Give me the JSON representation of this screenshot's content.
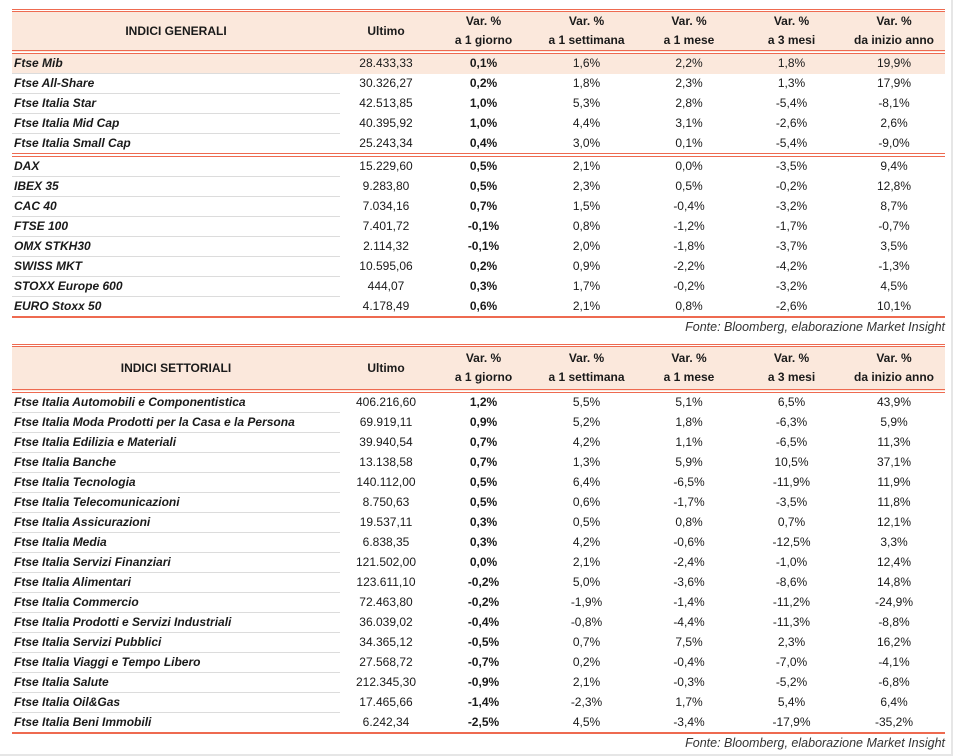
{
  "general": {
    "headers": [
      "INDICI GENERALI",
      "Ultimo",
      [
        "Var. %",
        "a 1 giorno"
      ],
      [
        "Var. %",
        "a 1 settimana"
      ],
      [
        "Var. %",
        "a 1 mese"
      ],
      [
        "Var. %",
        "a 3 mesi"
      ],
      [
        "Var. %",
        "da inizio anno"
      ]
    ],
    "rows": [
      [
        "Ftse Mib",
        "28.433,33",
        "0,1%",
        "1,6%",
        "2,2%",
        "1,8%",
        "19,9%"
      ],
      [
        "Ftse All-Share",
        "30.326,27",
        "0,2%",
        "1,8%",
        "2,3%",
        "1,3%",
        "17,9%"
      ],
      [
        "Ftse Italia Star",
        "42.513,85",
        "1,0%",
        "5,3%",
        "2,8%",
        "-5,4%",
        "-8,1%"
      ],
      [
        "Ftse Italia Mid Cap",
        "40.395,92",
        "1,0%",
        "4,4%",
        "3,1%",
        "-2,6%",
        "2,6%"
      ],
      [
        "Ftse Italia Small Cap",
        "25.243,34",
        "0,4%",
        "3,0%",
        "0,1%",
        "-5,4%",
        "-9,0%"
      ],
      [
        "DAX",
        "15.229,60",
        "0,5%",
        "2,1%",
        "0,0%",
        "-3,5%",
        "9,4%"
      ],
      [
        "IBEX 35",
        "9.283,80",
        "0,5%",
        "2,3%",
        "0,5%",
        "-0,2%",
        "12,8%"
      ],
      [
        "CAC 40",
        "7.034,16",
        "0,7%",
        "1,5%",
        "-0,4%",
        "-3,2%",
        "8,7%"
      ],
      [
        "FTSE 100",
        "7.401,72",
        "-0,1%",
        "0,8%",
        "-1,2%",
        "-1,7%",
        "-0,7%"
      ],
      [
        "OMX STKH30",
        "2.114,32",
        "-0,1%",
        "2,0%",
        "-1,8%",
        "-3,7%",
        "3,5%"
      ],
      [
        "SWISS MKT",
        "10.595,06",
        "0,2%",
        "0,9%",
        "-2,2%",
        "-4,2%",
        "-1,3%"
      ],
      [
        "STOXX Europe 600",
        "444,07",
        "0,3%",
        "1,7%",
        "-0,2%",
        "-3,2%",
        "4,5%"
      ],
      [
        "EURO Stoxx 50",
        "4.178,49",
        "0,6%",
        "2,1%",
        "0,8%",
        "-2,6%",
        "10,1%"
      ]
    ],
    "source": "Fonte: Bloomberg, elaborazione Market Insight"
  },
  "sector": {
    "headers": [
      "INDICI SETTORIALI",
      "Ultimo",
      [
        "Var. %",
        "a 1 giorno"
      ],
      [
        "Var. %",
        "a 1 settimana"
      ],
      [
        "Var. %",
        "a 1 mese"
      ],
      [
        "Var. %",
        "a 3 mesi"
      ],
      [
        "Var. %",
        "da inizio anno"
      ]
    ],
    "rows": [
      [
        "Ftse Italia Automobili e Componentistica",
        "406.216,60",
        "1,2%",
        "5,5%",
        "5,1%",
        "6,5%",
        "43,9%"
      ],
      [
        "Ftse Italia Moda Prodotti per la Casa e la Persona",
        "69.919,11",
        "0,9%",
        "5,2%",
        "1,8%",
        "-6,3%",
        "5,9%"
      ],
      [
        "Ftse Italia Edilizia e Materiali",
        "39.940,54",
        "0,7%",
        "4,2%",
        "1,1%",
        "-6,5%",
        "11,3%"
      ],
      [
        "Ftse Italia Banche",
        "13.138,58",
        "0,7%",
        "1,3%",
        "5,9%",
        "10,5%",
        "37,1%"
      ],
      [
        "Ftse Italia Tecnologia",
        "140.112,00",
        "0,5%",
        "6,4%",
        "-6,5%",
        "-11,9%",
        "11,9%"
      ],
      [
        "Ftse Italia Telecomunicazioni",
        "8.750,63",
        "0,5%",
        "0,6%",
        "-1,7%",
        "-3,5%",
        "11,8%"
      ],
      [
        "Ftse Italia Assicurazioni",
        "19.537,11",
        "0,3%",
        "0,5%",
        "0,8%",
        "0,7%",
        "12,1%"
      ],
      [
        "Ftse Italia Media",
        "6.838,35",
        "0,3%",
        "4,2%",
        "-0,6%",
        "-12,5%",
        "3,3%"
      ],
      [
        "Ftse Italia Servizi Finanziari",
        "121.502,00",
        "0,0%",
        "2,1%",
        "-2,4%",
        "-1,0%",
        "12,4%"
      ],
      [
        "Ftse Italia Alimentari",
        "123.611,10",
        "-0,2%",
        "5,0%",
        "-3,6%",
        "-8,6%",
        "14,8%"
      ],
      [
        "Ftse Italia Commercio",
        "72.463,80",
        "-0,2%",
        "-1,9%",
        "-1,4%",
        "-11,2%",
        "-24,9%"
      ],
      [
        "Ftse Italia Prodotti e Servizi Industriali",
        "36.039,02",
        "-0,4%",
        "-0,8%",
        "-4,4%",
        "-11,3%",
        "-8,8%"
      ],
      [
        "Ftse Italia Servizi Pubblici",
        "34.365,12",
        "-0,5%",
        "0,7%",
        "7,5%",
        "2,3%",
        "16,2%"
      ],
      [
        "Ftse Italia Viaggi e Tempo Libero",
        "27.568,72",
        "-0,7%",
        "0,2%",
        "-0,4%",
        "-7,0%",
        "-4,1%"
      ],
      [
        "Ftse Italia Salute",
        "212.345,30",
        "-0,9%",
        "2,1%",
        "-0,3%",
        "-5,2%",
        "-6,8%"
      ],
      [
        "Ftse Italia Oil&Gas",
        "17.465,66",
        "-1,4%",
        "-2,3%",
        "1,7%",
        "5,4%",
        "6,4%"
      ],
      [
        "Ftse Italia Beni Immobili",
        "6.242,34",
        "-2,5%",
        "4,5%",
        "-3,4%",
        "-17,9%",
        "-35,2%"
      ]
    ],
    "source": "Fonte: Bloomberg, elaborazione Market Insight"
  },
  "colors": {
    "accent": "#ee6a50",
    "header_bg": "#fbe8dc"
  }
}
